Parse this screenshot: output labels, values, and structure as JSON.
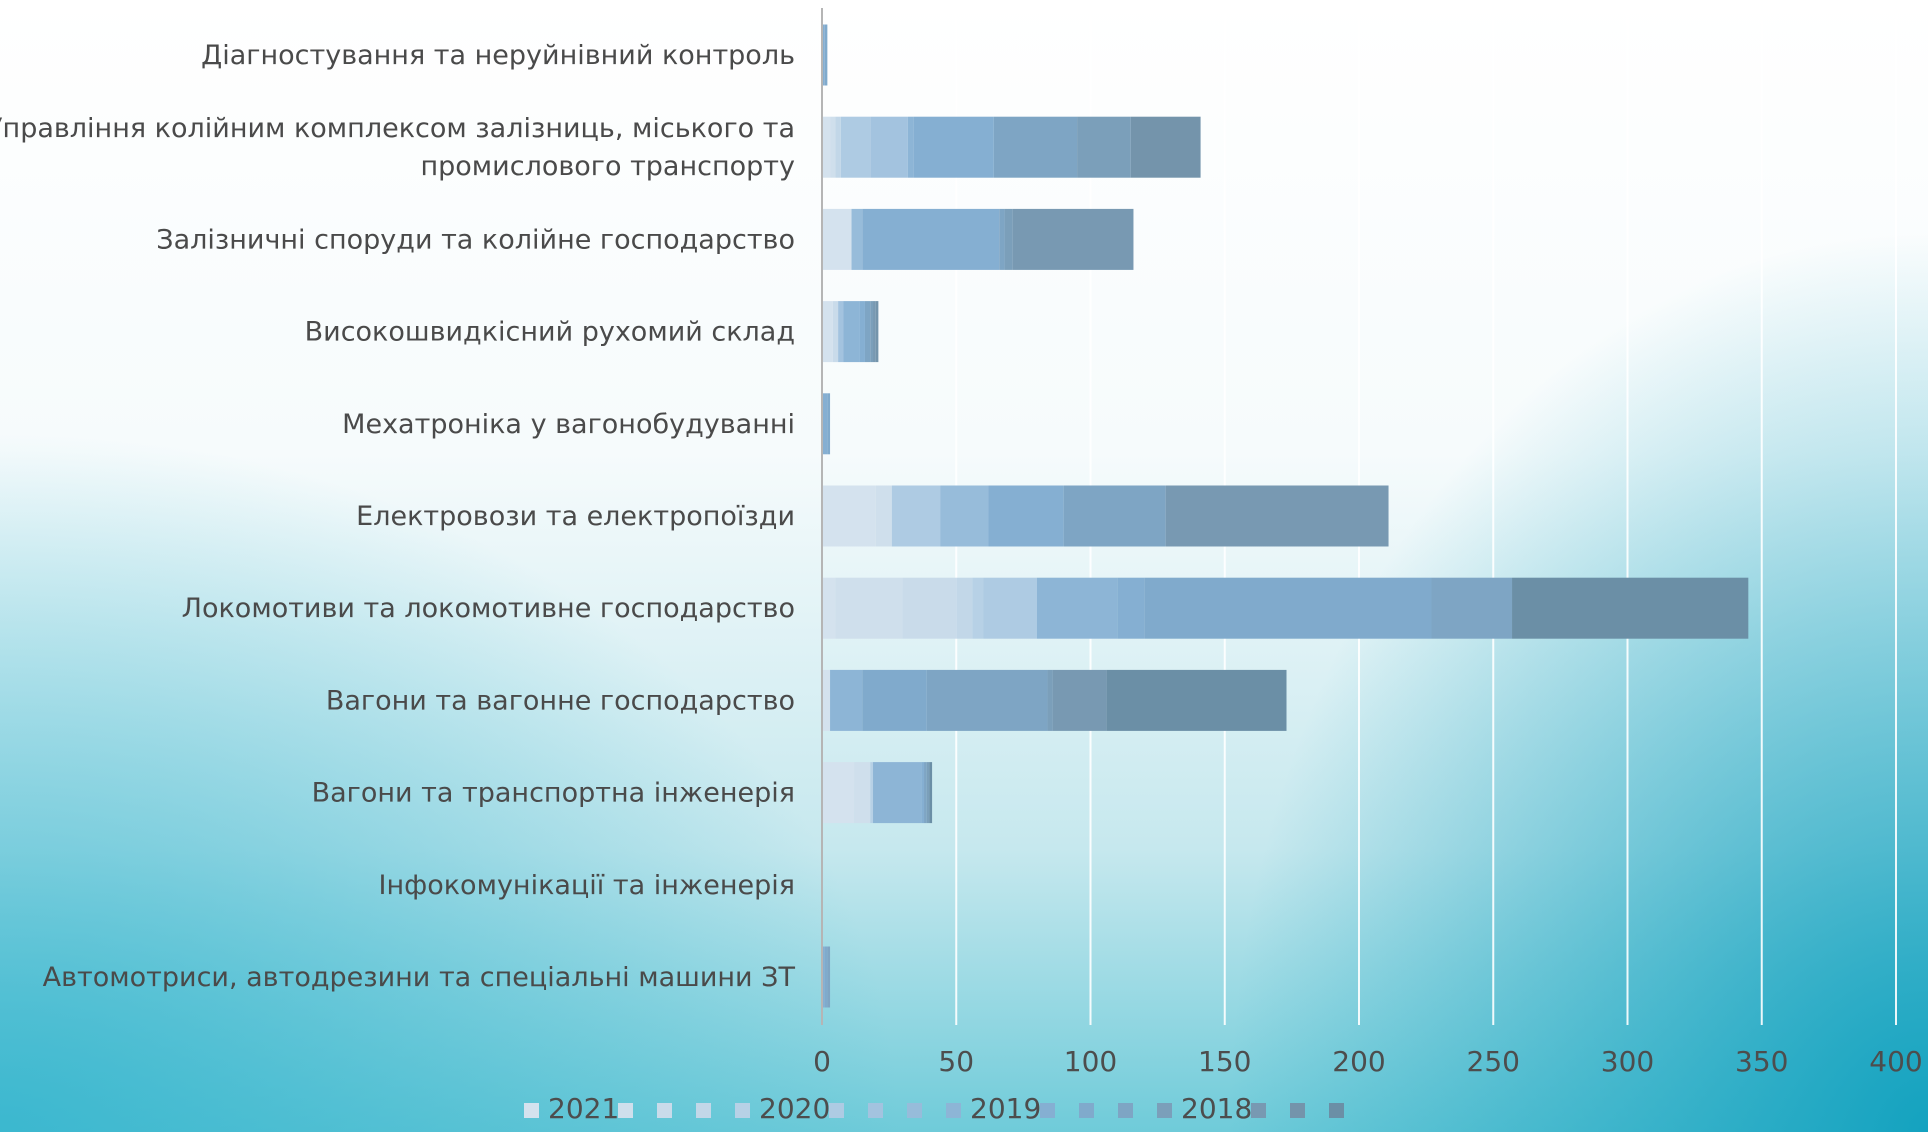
{
  "chart_data": {
    "type": "bar",
    "orientation": "horizontal",
    "stacked": true,
    "categories": [
      "Діагностування та неруйнівний контроль",
      "Управління колійним комплексом залізниць, міського та промислового транспорту",
      "Залізничні споруди та колійне господарство",
      "Високошвидкісний рухомий склад",
      "Мехатроніка у вагонобудуванні",
      "Електровози та електропоїзди",
      "Локомотиви та локомотивне господарство",
      "Вагони та вагонне господарство",
      "Вагони та транспортна інженерія",
      "Інфокомунікації та інженерія",
      "Автомотриси, автодрезини та спеціальні машини ЗТ"
    ],
    "category_lines": [
      [
        "Діагностування та неруйнівний контроль"
      ],
      [
        "Управління колійним комплексом залізниць, міського та",
        "промислового транспорту"
      ],
      [
        "Залізничні споруди та колійне господарство"
      ],
      [
        "Високошвидкісний рухомий склад"
      ],
      [
        "Мехатроніка у вагонобудуванні"
      ],
      [
        "Електровози та електропоїзди"
      ],
      [
        "Локомотиви та локомотивне господарство"
      ],
      [
        "Вагони та вагонне господарство"
      ],
      [
        "Вагони та транспортна інженерія"
      ],
      [
        "Інфокомунікації та інженерія"
      ],
      [
        "Автомотриси, автодрезини та спеціальні машини ЗТ"
      ]
    ],
    "series": [
      {
        "name": "2021",
        "color": "#d4e2ee",
        "values": [
          0,
          3,
          11,
          4,
          0,
          20,
          5,
          3,
          12,
          0,
          0
        ]
      },
      {
        "name": "",
        "color": "#cfdfec",
        "values": [
          0,
          2,
          0,
          0,
          0,
          6,
          25,
          0,
          6,
          0,
          0
        ]
      },
      {
        "name": "",
        "color": "#c9dbea",
        "values": [
          0,
          0,
          0,
          2,
          0,
          0,
          20,
          0,
          0,
          0,
          0
        ]
      },
      {
        "name": "",
        "color": "#c2d7e8",
        "values": [
          0,
          2,
          0,
          0,
          0,
          0,
          6,
          0,
          0,
          0,
          0
        ]
      },
      {
        "name": "2020",
        "color": "#b7d1e6",
        "values": [
          0,
          0,
          0,
          0,
          0,
          0,
          4,
          0,
          1,
          0,
          0
        ]
      },
      {
        "name": "",
        "color": "#aecbe3",
        "values": [
          0,
          11,
          0,
          0,
          0,
          18,
          20,
          0,
          0,
          0,
          0
        ]
      },
      {
        "name": "",
        "color": "#a3c3df",
        "values": [
          0,
          14,
          0,
          2,
          0,
          0,
          0,
          0,
          0,
          0,
          0
        ]
      },
      {
        "name": "",
        "color": "#97bcda",
        "values": [
          0,
          0,
          4,
          0,
          0,
          18,
          0,
          0,
          0,
          0,
          0
        ]
      },
      {
        "name": "2019",
        "color": "#8db5d6",
        "values": [
          0,
          2,
          0,
          6,
          0,
          0,
          30,
          12,
          18,
          0,
          0
        ]
      },
      {
        "name": "",
        "color": "#85afd2",
        "values": [
          1,
          30,
          51,
          2,
          2,
          28,
          10,
          0,
          1,
          0,
          1
        ]
      },
      {
        "name": "",
        "color": "#80aacc",
        "values": [
          1,
          0,
          0,
          0,
          1,
          0,
          107,
          24,
          0,
          0,
          1
        ]
      },
      {
        "name": "",
        "color": "#7ea5c4",
        "values": [
          0,
          31,
          2,
          2,
          0,
          38,
          30,
          45,
          1,
          0,
          1
        ]
      },
      {
        "name": "2018",
        "color": "#7b9fba",
        "values": [
          0,
          20,
          3,
          1,
          0,
          0,
          0,
          2,
          1,
          0,
          0
        ]
      },
      {
        "name": "",
        "color": "#7899b2",
        "values": [
          0,
          0,
          45,
          1,
          0,
          83,
          0,
          20,
          0,
          0,
          0
        ]
      },
      {
        "name": "",
        "color": "#7494ab",
        "values": [
          0,
          26,
          0,
          1,
          0,
          0,
          0,
          0,
          0,
          0,
          0
        ]
      },
      {
        "name": "",
        "color": "#6b8fa6",
        "values": [
          0,
          0,
          0,
          0,
          0,
          0,
          88,
          67,
          1,
          0,
          0
        ]
      }
    ],
    "xlim": [
      0,
      400
    ],
    "x_ticks": [
      0,
      50,
      100,
      150,
      200,
      250,
      300,
      350,
      400
    ],
    "grid": true,
    "legend_position": "bottom"
  }
}
